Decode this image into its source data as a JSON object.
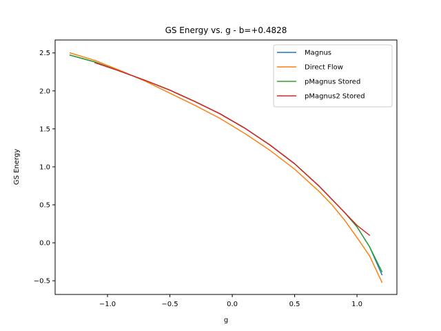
{
  "chart_data": {
    "type": "line",
    "title": "GS Energy vs. g - b=+0.4828",
    "xlabel": "g",
    "ylabel": "GS Energy",
    "xlim": [
      -1.42,
      1.32
    ],
    "ylim": [
      -0.68,
      2.67
    ],
    "xticks": [
      -1.0,
      -0.5,
      0.0,
      0.5,
      1.0
    ],
    "xtick_labels": [
      "−1.0",
      "−0.5",
      "0.0",
      "0.5",
      "1.0"
    ],
    "yticks": [
      -0.5,
      0.0,
      0.5,
      1.0,
      1.5,
      2.0,
      2.5
    ],
    "ytick_labels": [
      "−0.5",
      "0.0",
      "0.5",
      "1.0",
      "1.5",
      "2.0",
      "2.5"
    ],
    "grid": false,
    "legend_position": "top-right",
    "series": [
      {
        "name": "Magnus",
        "color": "#1f77b4",
        "x": [
          -1.3,
          -1.1,
          -0.9,
          -0.7,
          -0.5,
          -0.3,
          -0.1,
          0.1,
          0.3,
          0.5,
          0.7,
          0.9,
          1.0,
          1.1,
          1.2
        ],
        "y": [
          2.47,
          2.38,
          2.26,
          2.14,
          2.01,
          1.86,
          1.7,
          1.51,
          1.29,
          1.04,
          0.74,
          0.4,
          0.21,
          -0.05,
          -0.42
        ]
      },
      {
        "name": "Direct Flow",
        "color": "#ff7f0e",
        "x": [
          -1.3,
          -1.1,
          -0.9,
          -0.7,
          -0.5,
          -0.3,
          -0.1,
          0.1,
          0.3,
          0.5,
          0.7,
          0.8,
          0.9,
          1.0,
          1.1,
          1.2
        ],
        "y": [
          2.5,
          2.4,
          2.27,
          2.13,
          1.97,
          1.81,
          1.64,
          1.44,
          1.22,
          0.97,
          0.67,
          0.5,
          0.3,
          0.07,
          -0.17,
          -0.52
        ]
      },
      {
        "name": "pMagnus Stored",
        "color": "#2ca02c",
        "x": [
          -1.3,
          -1.1,
          -0.9,
          -0.7,
          -0.5,
          -0.3,
          -0.1,
          0.1,
          0.3,
          0.5,
          0.7,
          0.9,
          1.0,
          1.1,
          1.2
        ],
        "y": [
          2.47,
          2.38,
          2.26,
          2.14,
          2.01,
          1.86,
          1.7,
          1.51,
          1.29,
          1.04,
          0.74,
          0.4,
          0.21,
          -0.05,
          -0.38
        ]
      },
      {
        "name": "pMagnus2 Stored",
        "color": "#d62728",
        "x": [
          -1.1,
          -0.9,
          -0.7,
          -0.5,
          -0.3,
          -0.1,
          0.1,
          0.3,
          0.5,
          0.7,
          0.9,
          1.0,
          1.1
        ],
        "y": [
          2.37,
          2.26,
          2.14,
          2.01,
          1.86,
          1.7,
          1.51,
          1.29,
          1.04,
          0.74,
          0.4,
          0.23,
          0.1
        ]
      }
    ]
  }
}
